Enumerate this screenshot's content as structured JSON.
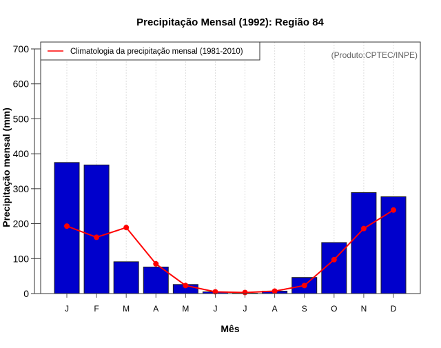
{
  "chart_data": {
    "type": "bar",
    "title": "Precipitação Mensal (1992): Região 84",
    "xlabel": "Mês",
    "ylabel": "Precipitação mensal (mm)",
    "ylim": [
      0,
      700
    ],
    "yticks": [
      0,
      100,
      200,
      300,
      400,
      500,
      600,
      700
    ],
    "categories": [
      "J",
      "F",
      "M",
      "A",
      "M",
      "J",
      "J",
      "A",
      "S",
      "O",
      "N",
      "D"
    ],
    "grid": "vertical-dotted",
    "series": [
      {
        "name": "Precipitação mensal (1992)",
        "type": "bar",
        "color": "#0000cc",
        "values": [
          375,
          368,
          91,
          76,
          26,
          5,
          1,
          7,
          46,
          146,
          289,
          277
        ]
      },
      {
        "name": "Climatologia da precipitação mensal (1981-2010)",
        "type": "line",
        "color": "#ff0000",
        "values": [
          193,
          161,
          189,
          85,
          23,
          5,
          3,
          7,
          23,
          97,
          186,
          239
        ]
      }
    ],
    "legend": {
      "position": "top-left",
      "entries": [
        "Climatologia da precipitação mensal (1981-2010)"
      ]
    },
    "annotation": "(Produto:CPTEC/INPE)"
  }
}
